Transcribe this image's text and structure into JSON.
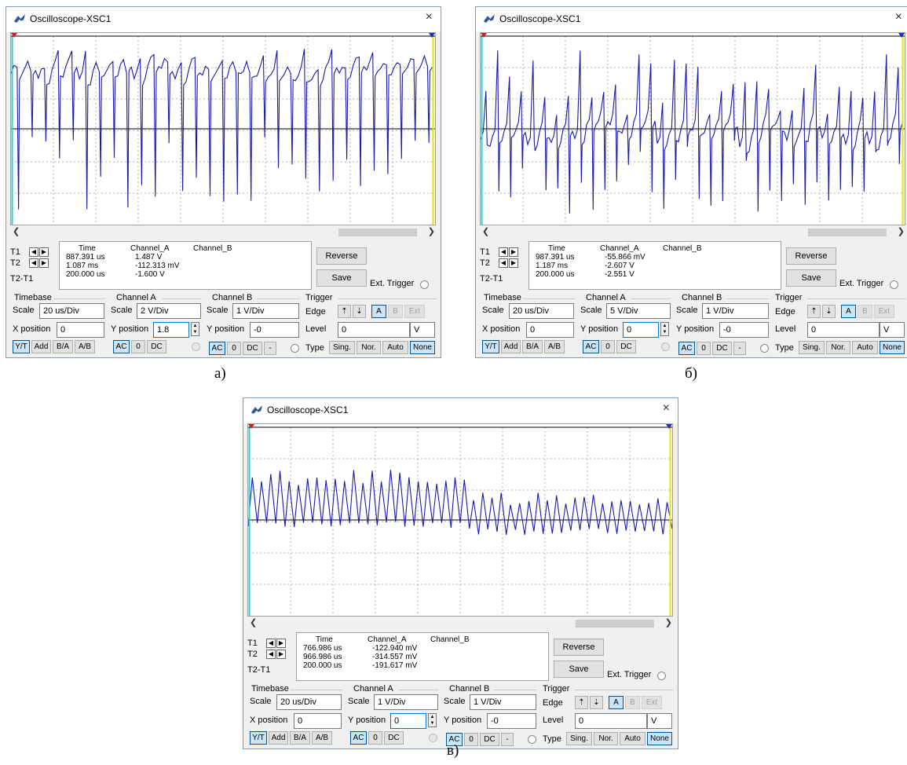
{
  "window_title": "Oscilloscope-XSC1",
  "close_glyph": "×",
  "t_labels": {
    "t1": "T1",
    "t2": "T2",
    "t2t1": "T2-T1"
  },
  "buttons": {
    "reverse": "Reverse",
    "save": "Save",
    "ext_trigger": "Ext. Trigger"
  },
  "group_labels": {
    "timebase": "Timebase",
    "channel_a": "Channel A",
    "channel_b": "Channel B",
    "trigger": "Trigger"
  },
  "field_labels": {
    "scale": "Scale",
    "x_position": "X position",
    "y_position": "Y position",
    "edge": "Edge",
    "level": "Level",
    "type": "Type"
  },
  "mode_buttons": [
    "Y/T",
    "Add",
    "B/A",
    "A/B"
  ],
  "coupling_buttons": [
    "AC",
    "0",
    "DC"
  ],
  "minus_button": "-",
  "edge_buttons": [
    "A",
    "B",
    "Ext"
  ],
  "type_buttons": [
    "Sing.",
    "Nor.",
    "Auto",
    "None"
  ],
  "level_unit": "V",
  "readout_headers": {
    "time": "Time",
    "channel_a": "Channel_A",
    "channel_b": "Channel_B"
  },
  "colors": {
    "trace": "#1a1aa8",
    "zero_line": "#000000",
    "cursor1": "#33cccc",
    "cursor2": "#e6e600",
    "grid": "#b0b0b0",
    "active": "#cce4f7"
  },
  "panels": [
    {
      "caption": "а)",
      "trace_style": "spiky-a",
      "readout": {
        "t1": {
          "time": "887.391 us",
          "a": "1.487 V"
        },
        "t2": {
          "time": "1.087 ms",
          "a": "-112.313 mV"
        },
        "dt": {
          "time": "200.000 us",
          "a": "-1.600 V"
        }
      },
      "timebase_scale": "20 us/Div",
      "x_position": "0",
      "cha_scale": "2 V/Div",
      "cha_ypos": "1.8",
      "chb_scale": "1 V/Div",
      "chb_ypos": "-0",
      "trigger_level": "0"
    },
    {
      "caption": "б)",
      "trace_style": "spiky-b",
      "readout": {
        "t1": {
          "time": "987.391 us",
          "a": "-55.866 mV"
        },
        "t2": {
          "time": "1.187 ms",
          "a": "-2.607 V"
        },
        "dt": {
          "time": "200.000 us",
          "a": "-2.551 V"
        }
      },
      "timebase_scale": "20 us/Div",
      "x_position": "0",
      "cha_scale": "5 V/Div",
      "cha_ypos": "0",
      "chb_scale": "1 V/Div",
      "chb_ypos": "-0",
      "trigger_level": "0"
    },
    {
      "caption": "в)",
      "trace_style": "smooth",
      "readout": {
        "t1": {
          "time": "766.986 us",
          "a": "-122.940 mV"
        },
        "t2": {
          "time": "966.986 us",
          "a": "-314.557 mV"
        },
        "dt": {
          "time": "200.000 us",
          "a": "-191.617 mV"
        }
      },
      "timebase_scale": "20 us/Div",
      "x_position": "0",
      "cha_scale": "1 V/Div",
      "cha_ypos": "0",
      "chb_scale": "1 V/Div",
      "chb_ypos": "-0",
      "trigger_level": "0"
    }
  ]
}
